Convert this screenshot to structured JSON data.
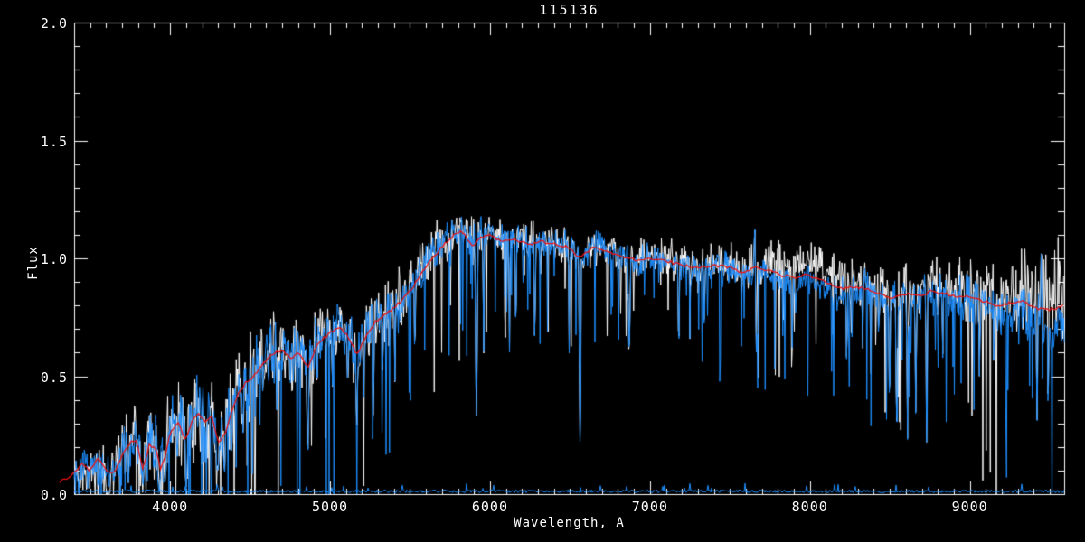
{
  "chart_data": {
    "type": "line",
    "title": "115136",
    "xlabel": "Wavelength, A",
    "ylabel": "Flux",
    "xlim": [
      3400,
      9590
    ],
    "ylim": [
      0.0,
      2.0
    ],
    "grid": false,
    "legend_position": "none",
    "background_color": "#000000",
    "axis_color": "#ffffff",
    "x_ticks": [
      {
        "v": 4000,
        "label": "4000"
      },
      {
        "v": 5000,
        "label": "5000"
      },
      {
        "v": 6000,
        "label": "6000"
      },
      {
        "v": 7000,
        "label": "7000"
      },
      {
        "v": 8000,
        "label": "8000"
      },
      {
        "v": 9000,
        "label": "9000"
      }
    ],
    "y_ticks": [
      {
        "v": 0.0,
        "label": "0.0"
      },
      {
        "v": 0.5,
        "label": "0.5"
      },
      {
        "v": 1.0,
        "label": "1.0"
      },
      {
        "v": 1.5,
        "label": "1.5"
      },
      {
        "v": 2.0,
        "label": "2.0"
      }
    ],
    "x_minor_step": 100,
    "y_minor_step": 0.1,
    "series": [
      {
        "name": "observed-spectrum-white",
        "color": "#ffffff"
      },
      {
        "name": "observed-spectrum-blue",
        "color": "#1e8fff"
      },
      {
        "name": "template-fit-red",
        "color": "#ee1111"
      },
      {
        "name": "noise-floor-blue",
        "color": "#1e8fff"
      }
    ],
    "seed": 115136,
    "template_points": [
      [
        3310,
        0.05
      ],
      [
        3400,
        0.09
      ],
      [
        3450,
        0.13
      ],
      [
        3500,
        0.1
      ],
      [
        3550,
        0.15
      ],
      [
        3600,
        0.1
      ],
      [
        3650,
        0.09
      ],
      [
        3700,
        0.16
      ],
      [
        3750,
        0.22
      ],
      [
        3790,
        0.23
      ],
      [
        3830,
        0.1
      ],
      [
        3870,
        0.21
      ],
      [
        3910,
        0.19
      ],
      [
        3940,
        0.11
      ],
      [
        3970,
        0.16
      ],
      [
        4000,
        0.26
      ],
      [
        4050,
        0.3
      ],
      [
        4100,
        0.23
      ],
      [
        4140,
        0.32
      ],
      [
        4180,
        0.34
      ],
      [
        4220,
        0.3
      ],
      [
        4260,
        0.33
      ],
      [
        4300,
        0.22
      ],
      [
        4340,
        0.25
      ],
      [
        4380,
        0.34
      ],
      [
        4420,
        0.42
      ],
      [
        4470,
        0.47
      ],
      [
        4520,
        0.5
      ],
      [
        4570,
        0.54
      ],
      [
        4620,
        0.58
      ],
      [
        4670,
        0.61
      ],
      [
        4720,
        0.6
      ],
      [
        4760,
        0.57
      ],
      [
        4800,
        0.6
      ],
      [
        4861,
        0.54
      ],
      [
        4910,
        0.62
      ],
      [
        4960,
        0.66
      ],
      [
        5010,
        0.69
      ],
      [
        5060,
        0.71
      ],
      [
        5110,
        0.67
      ],
      [
        5170,
        0.59
      ],
      [
        5230,
        0.68
      ],
      [
        5280,
        0.73
      ],
      [
        5340,
        0.76
      ],
      [
        5400,
        0.79
      ],
      [
        5460,
        0.83
      ],
      [
        5520,
        0.88
      ],
      [
        5580,
        0.95
      ],
      [
        5640,
        1.0
      ],
      [
        5700,
        1.05
      ],
      [
        5760,
        1.09
      ],
      [
        5820,
        1.12
      ],
      [
        5890,
        1.05
      ],
      [
        5950,
        1.09
      ],
      [
        6000,
        1.1
      ],
      [
        6080,
        1.07
      ],
      [
        6160,
        1.08
      ],
      [
        6240,
        1.06
      ],
      [
        6320,
        1.07
      ],
      [
        6400,
        1.06
      ],
      [
        6480,
        1.05
      ],
      [
        6563,
        1.0
      ],
      [
        6650,
        1.05
      ],
      [
        6740,
        1.03
      ],
      [
        6830,
        1.01
      ],
      [
        6920,
        0.99
      ],
      [
        7000,
        1.0
      ],
      [
        7100,
        0.99
      ],
      [
        7200,
        0.97
      ],
      [
        7300,
        0.96
      ],
      [
        7400,
        0.97
      ],
      [
        7500,
        0.96
      ],
      [
        7580,
        0.94
      ],
      [
        7660,
        0.96
      ],
      [
        7740,
        0.95
      ],
      [
        7820,
        0.93
      ],
      [
        7900,
        0.92
      ],
      [
        7980,
        0.93
      ],
      [
        8060,
        0.91
      ],
      [
        8140,
        0.89
      ],
      [
        8200,
        0.87
      ],
      [
        8280,
        0.88
      ],
      [
        8360,
        0.87
      ],
      [
        8440,
        0.85
      ],
      [
        8520,
        0.83
      ],
      [
        8600,
        0.85
      ],
      [
        8680,
        0.84
      ],
      [
        8760,
        0.86
      ],
      [
        8840,
        0.85
      ],
      [
        8920,
        0.84
      ],
      [
        9000,
        0.84
      ],
      [
        9080,
        0.82
      ],
      [
        9160,
        0.8
      ],
      [
        9240,
        0.81
      ],
      [
        9320,
        0.82
      ],
      [
        9400,
        0.79
      ],
      [
        9480,
        0.78
      ],
      [
        9590,
        0.8
      ]
    ],
    "noise_amp_points": [
      [
        3400,
        0.05
      ],
      [
        3600,
        0.07
      ],
      [
        3800,
        0.09
      ],
      [
        4000,
        0.1
      ],
      [
        4200,
        0.12
      ],
      [
        4400,
        0.12
      ],
      [
        4600,
        0.1
      ],
      [
        4800,
        0.09
      ],
      [
        5000,
        0.09
      ],
      [
        5200,
        0.08
      ],
      [
        5400,
        0.07
      ],
      [
        5600,
        0.06
      ],
      [
        5800,
        0.055
      ],
      [
        6000,
        0.05
      ],
      [
        6300,
        0.045
      ],
      [
        6600,
        0.045
      ],
      [
        7000,
        0.045
      ],
      [
        7400,
        0.05
      ],
      [
        7700,
        0.055
      ],
      [
        8000,
        0.05
      ],
      [
        8300,
        0.055
      ],
      [
        8600,
        0.06
      ],
      [
        8900,
        0.07
      ],
      [
        9100,
        0.08
      ],
      [
        9300,
        0.1
      ],
      [
        9590,
        0.13
      ]
    ],
    "white_offset_points": [
      [
        3400,
        0.0
      ],
      [
        5000,
        0.01
      ],
      [
        5300,
        0.02
      ],
      [
        5600,
        0.02
      ],
      [
        6000,
        0.01
      ],
      [
        7000,
        0.01
      ],
      [
        7600,
        0.0
      ],
      [
        7850,
        0.05
      ],
      [
        8000,
        0.06
      ],
      [
        8200,
        0.05
      ],
      [
        8300,
        0.01
      ],
      [
        8600,
        0.02
      ],
      [
        9000,
        0.03
      ],
      [
        9200,
        0.05
      ],
      [
        9590,
        0.06
      ]
    ],
    "blue_offset_points": [
      [
        3400,
        0.0
      ],
      [
        5500,
        0.01
      ],
      [
        6000,
        0.015
      ],
      [
        6500,
        0.01
      ],
      [
        7000,
        0.0
      ],
      [
        7800,
        -0.02
      ],
      [
        8000,
        -0.03
      ],
      [
        8200,
        -0.02
      ],
      [
        8400,
        -0.01
      ],
      [
        8700,
        -0.01
      ],
      [
        9000,
        -0.02
      ],
      [
        9200,
        -0.04
      ],
      [
        9400,
        -0.06
      ],
      [
        9590,
        -0.1
      ]
    ],
    "absorption_lines": [
      [
        3430,
        0.0,
        8
      ],
      [
        3550,
        0.02,
        6
      ],
      [
        3620,
        0.03,
        6
      ],
      [
        3740,
        0.04,
        6
      ],
      [
        3830,
        0.03,
        8
      ],
      [
        3933,
        0.01,
        12
      ],
      [
        3968,
        0.05,
        10
      ],
      [
        4045,
        0.15,
        6
      ],
      [
        4101,
        0.06,
        10
      ],
      [
        4226,
        0.12,
        8
      ],
      [
        4300,
        0.1,
        14
      ],
      [
        4340,
        0.08,
        10
      ],
      [
        4383,
        0.18,
        8
      ],
      [
        4455,
        0.25,
        6
      ],
      [
        4531,
        0.3,
        6
      ],
      [
        4668,
        0.35,
        6
      ],
      [
        4861,
        0.15,
        10
      ],
      [
        4920,
        0.4,
        5
      ],
      [
        5015,
        0.45,
        5
      ],
      [
        5110,
        0.45,
        6
      ],
      [
        5167,
        0.28,
        8
      ],
      [
        5210,
        0.4,
        6
      ],
      [
        5270,
        0.33,
        8
      ],
      [
        5330,
        0.5,
        5
      ],
      [
        5406,
        0.45,
        5
      ],
      [
        5530,
        0.55,
        5
      ],
      [
        5915,
        0.3,
        10
      ],
      [
        5960,
        0.55,
        5
      ],
      [
        6122,
        0.6,
        5
      ],
      [
        6162,
        0.62,
        5
      ],
      [
        6280,
        0.62,
        6
      ],
      [
        6495,
        0.6,
        5
      ],
      [
        6563,
        0.22,
        9
      ],
      [
        6870,
        0.55,
        8
      ],
      [
        7180,
        0.6,
        7
      ],
      [
        7250,
        0.65,
        5
      ],
      [
        7340,
        0.68,
        5
      ],
      [
        7665,
        0.6,
        6
      ],
      [
        7890,
        0.62,
        5
      ],
      [
        8230,
        0.55,
        6
      ],
      [
        8330,
        0.6,
        5
      ],
      [
        8430,
        0.62,
        5
      ],
      [
        8498,
        0.35,
        7
      ],
      [
        8542,
        0.28,
        8
      ],
      [
        8610,
        0.2,
        6
      ],
      [
        8662,
        0.33,
        7
      ],
      [
        8730,
        0.18,
        6
      ],
      [
        8830,
        0.55,
        5
      ],
      [
        9060,
        0.5,
        6
      ],
      [
        9150,
        0.55,
        5
      ],
      [
        9420,
        0.3,
        7
      ],
      [
        9490,
        0.35,
        6
      ]
    ],
    "emission_spikes": [
      [
        7655,
        1.17,
        5
      ],
      [
        8345,
        0.99,
        4
      ],
      [
        9446,
        1.02,
        6
      ]
    ],
    "noise_floor_flux": 0.012
  }
}
